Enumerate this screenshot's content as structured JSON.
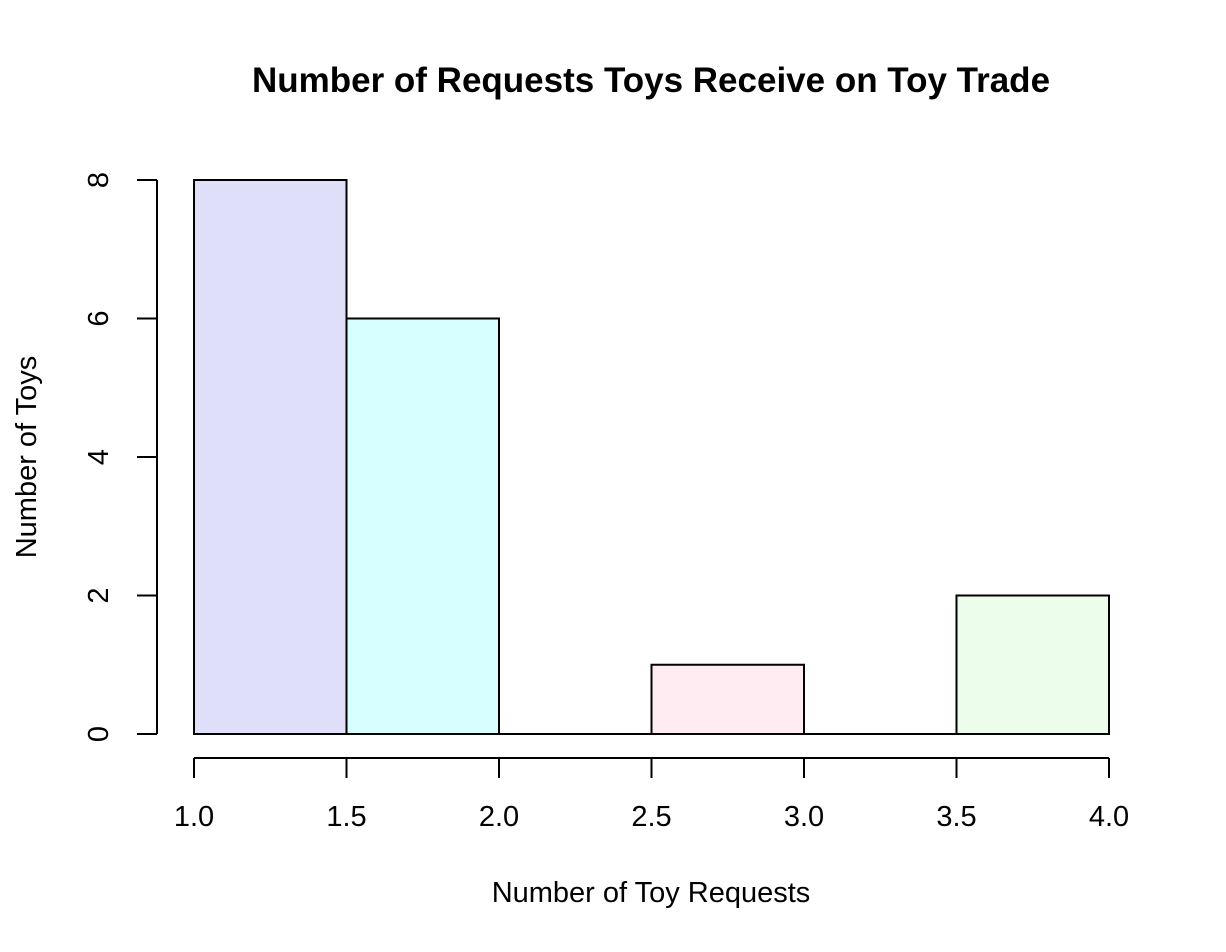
{
  "chart_data": {
    "type": "bar",
    "title": "Number of Requests Toys Receive on Toy Trade",
    "xlabel": "Number of Toy Requests",
    "ylabel": "Number of Toys",
    "xlim": [
      1.0,
      4.0
    ],
    "ylim": [
      0,
      8
    ],
    "x_ticks": [
      "1.0",
      "1.5",
      "2.0",
      "2.5",
      "3.0",
      "3.5",
      "4.0"
    ],
    "y_ticks": [
      "0",
      "2",
      "4",
      "6",
      "8"
    ],
    "bins": [
      {
        "start": 1.0,
        "end": 1.5,
        "count": 8,
        "color": "#e0dffa"
      },
      {
        "start": 1.5,
        "end": 2.0,
        "count": 6,
        "color": "#d8ffff"
      },
      {
        "start": 2.0,
        "end": 2.5,
        "count": 0,
        "color": "#fff8e8"
      },
      {
        "start": 2.5,
        "end": 3.0,
        "count": 1,
        "color": "#ffebf2"
      },
      {
        "start": 3.0,
        "end": 3.5,
        "count": 0,
        "color": "#f0f0f0"
      },
      {
        "start": 3.5,
        "end": 4.0,
        "count": 2,
        "color": "#ecfdec"
      }
    ],
    "grid": false,
    "legend": "none"
  }
}
